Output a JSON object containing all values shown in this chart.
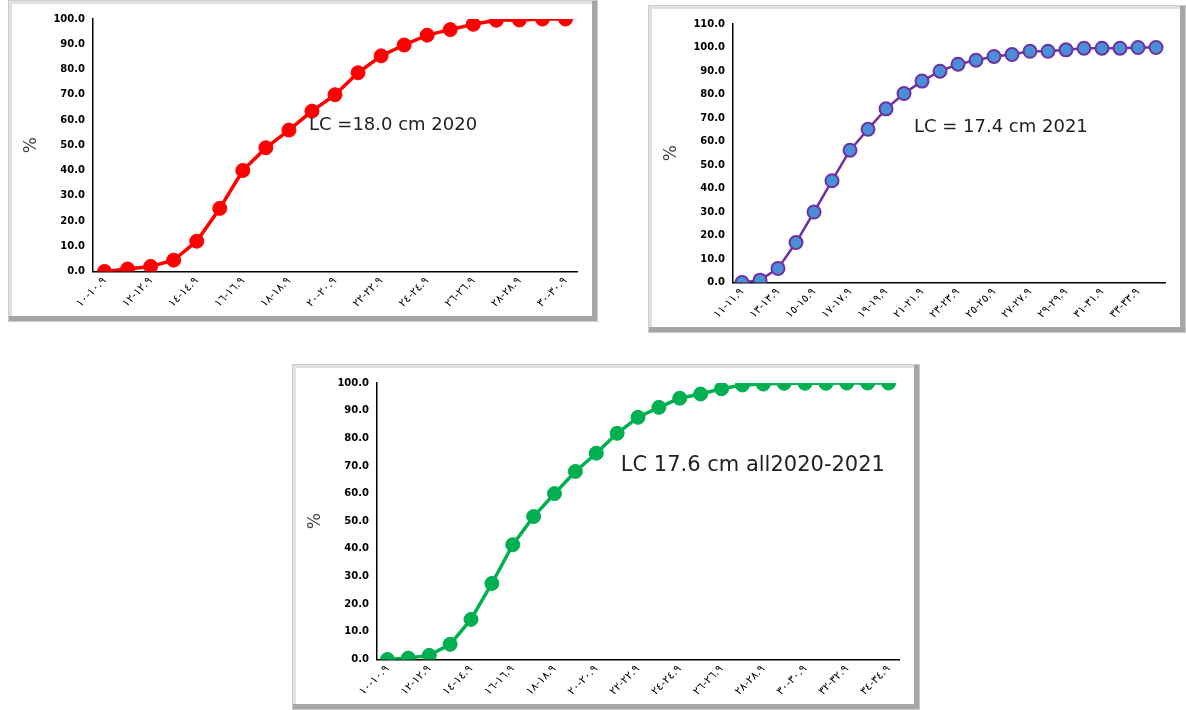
{
  "chart_data": [
    {
      "type": "line",
      "ylabel": "%",
      "annotations": [
        "LC =18.0 cm 2020"
      ],
      "categories": [
        "١٠.٩-١٠",
        null,
        "١٢.٩-١٢",
        null,
        "١٤.٩-١٤",
        null,
        "١٦.٩-١٦",
        null,
        "١٨.٩-١٨",
        null,
        "٢٠.٩-٢٠",
        null,
        "٢٢.٩-٢٢",
        null,
        "٢٤.٩-٢٤",
        null,
        "٢٦.٩-٢٦",
        null,
        "٢٨.٩-٢٨",
        null,
        "٣٠.٩-٣٠"
      ],
      "series": [
        {
          "color": "#ff0000",
          "values": [
            0,
            1,
            2,
            4.5,
            12,
            25,
            40,
            49,
            56,
            63.5,
            70,
            78.7,
            85.4,
            89.7,
            93.6,
            95.8,
            97.9,
            99.5,
            99.6,
            100,
            100
          ]
        }
      ],
      "ylim": [
        0,
        100
      ],
      "yticks": [
        {
          "value": 0,
          "label": "0.0"
        },
        {
          "value": 10,
          "label": "10.0"
        },
        {
          "value": 20,
          "label": "20.0"
        },
        {
          "value": 30,
          "label": "30.0"
        },
        {
          "value": 40,
          "label": "40.0"
        },
        {
          "value": 50,
          "label": "50.0"
        },
        {
          "value": 60,
          "label": "60.0"
        },
        {
          "value": 70,
          "label": "70.0"
        },
        {
          "value": 80,
          "label": "80.0"
        },
        {
          "value": 90,
          "label": "90.0"
        },
        {
          "value": 100,
          "label": "100.0"
        }
      ],
      "marker": "circle",
      "grid": false,
      "legend": false
    },
    {
      "type": "line",
      "ylabel": "%",
      "annotations": [
        "LC = 17.4 cm 2021"
      ],
      "categories": [
        "١١.٩-١١",
        null,
        "١٣.٩-١٣",
        null,
        "١٥.٩-١٥",
        null,
        "١٧.٩-١٧",
        null,
        "١٩.٩-١٩",
        null,
        "٢١.٩-٢١",
        null,
        "٢٣.٩-٢٣",
        null,
        "٢٥.٩-٢٥",
        null,
        "٢٧.٩-٢٧",
        null,
        "٢٩.٩-٢٩",
        null,
        "٣١.٩-٣١",
        null,
        "٣٣.٩-٣٣",
        null
      ],
      "series": [
        {
          "color": "#7030a0",
          "values": [
            0,
            1,
            6,
            17,
            30,
            43.3,
            56.3,
            65.2,
            73.9,
            80.4,
            85.7,
            89.9,
            92.9,
            94.6,
            96.2,
            97,
            98.4,
            98.4,
            99,
            99.7,
            99.7,
            99.7,
            100,
            100
          ]
        }
      ],
      "ylim": [
        0,
        110
      ],
      "yticks": [
        {
          "value": 0,
          "label": "0.0"
        },
        {
          "value": 10,
          "label": "10.0"
        },
        {
          "value": 20,
          "label": "20.0"
        },
        {
          "value": 30,
          "label": "30.0"
        },
        {
          "value": 40,
          "label": "40.0"
        },
        {
          "value": 50,
          "label": "50.0"
        },
        {
          "value": 60,
          "label": "60.0"
        },
        {
          "value": 70,
          "label": "70.0"
        },
        {
          "value": 80,
          "label": "80.0"
        },
        {
          "value": 90,
          "label": "90.0"
        },
        {
          "value": 100,
          "label": "100.0"
        },
        {
          "value": 110,
          "label": "110.0"
        }
      ],
      "marker": "circle",
      "grid": false,
      "legend": false
    },
    {
      "type": "line",
      "ylabel": "%",
      "annotations": [
        "LC 17.6 cm all2020-2021"
      ],
      "categories": [
        "١٠.٩-١٠",
        null,
        "١٢.٩-١٢",
        null,
        "١٤.٩-١٤",
        null,
        "١٦.٩-١٦",
        null,
        "١٨.٩-١٨",
        null,
        "٢٠.٩-٢٠",
        null,
        "٢٢.٩-٢٢",
        null,
        "٢٤.٩-٢٤",
        null,
        "٢٦.٩-٢٦",
        null,
        "٢٨.٩-٢٨",
        null,
        "٣٠.٩-٣٠",
        null,
        "٣٢.٩-٣٢",
        null,
        "٣٤.٩-٣٤"
      ],
      "series": [
        {
          "color": "#00b050",
          "values": [
            0,
            0.5,
            1.5,
            5.5,
            14.5,
            27.5,
            41.5,
            51.7,
            60,
            68,
            74.6,
            81.8,
            87.6,
            91.2,
            94.5,
            96,
            97.9,
            99.3,
            99.6,
            99.9,
            99.9,
            99.9,
            100,
            100,
            100
          ]
        }
      ],
      "ylim": [
        0,
        100
      ],
      "yticks": [
        {
          "value": 0,
          "label": "0.0"
        },
        {
          "value": 10,
          "label": "10.0"
        },
        {
          "value": 20,
          "label": "20.0"
        },
        {
          "value": 30,
          "label": "30.0"
        },
        {
          "value": 40,
          "label": "40.0"
        },
        {
          "value": 50,
          "label": "50.0"
        },
        {
          "value": 60,
          "label": "60.0"
        },
        {
          "value": 70,
          "label": "70.0"
        },
        {
          "value": 80,
          "label": "80.0"
        },
        {
          "value": 90,
          "label": "90.0"
        },
        {
          "value": 100,
          "label": "100.0"
        }
      ],
      "marker": "circle",
      "grid": false,
      "legend": false
    }
  ]
}
